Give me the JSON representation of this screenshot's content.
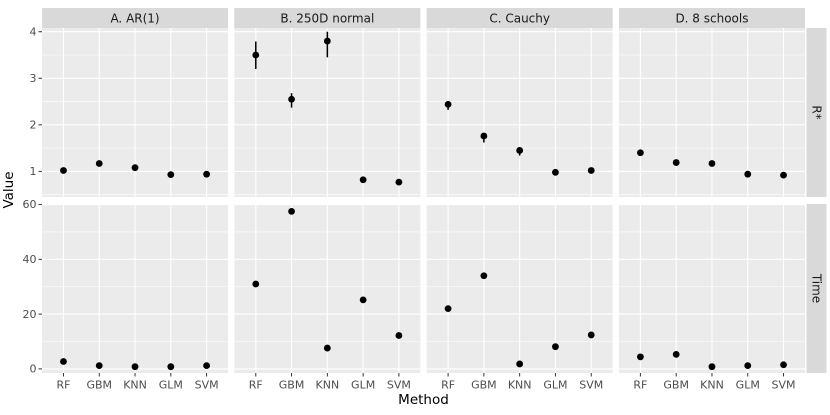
{
  "chart_data": {
    "type": "scatter",
    "title": "",
    "xlabel": "Method",
    "ylabel": "Value",
    "x_categories": [
      "RF",
      "GBM",
      "KNN",
      "GLM",
      "SVM"
    ],
    "col_facets": [
      "A. AR(1)",
      "B. 250D normal",
      "C. Cauchy",
      "D. 8 schools"
    ],
    "row_facets": [
      "R*",
      "Time"
    ],
    "legend": "none",
    "grid": "on",
    "rows": [
      {
        "name": "R*",
        "ylim": [
          0.45,
          4.08
        ],
        "yticks": [
          1,
          2,
          3,
          4
        ],
        "yminor": [
          0.5,
          1.5,
          2.5,
          3.5
        ],
        "panels": [
          {
            "col": "A. AR(1)",
            "values": [
              1.02,
              1.17,
              1.08,
              0.93,
              0.94
            ],
            "lower": [
              null,
              null,
              null,
              null,
              null
            ],
            "upper": [
              null,
              null,
              null,
              null,
              null
            ]
          },
          {
            "col": "B. 250D normal",
            "values": [
              3.5,
              2.55,
              3.8,
              0.82,
              0.77
            ],
            "lower": [
              3.2,
              2.37,
              3.45,
              null,
              null
            ],
            "upper": [
              3.79,
              2.68,
              4.0,
              null,
              null
            ]
          },
          {
            "col": "C. Cauchy",
            "values": [
              2.44,
              1.76,
              1.45,
              0.98,
              1.02
            ],
            "lower": [
              2.32,
              1.62,
              1.34,
              null,
              null
            ],
            "upper": [
              2.5,
              1.82,
              1.5,
              null,
              null
            ]
          },
          {
            "col": "D. 8 schools",
            "values": [
              1.4,
              1.19,
              1.17,
              0.94,
              0.92
            ],
            "lower": [
              null,
              null,
              null,
              null,
              null
            ],
            "upper": [
              null,
              null,
              null,
              null,
              null
            ]
          }
        ]
      },
      {
        "name": "Time",
        "ylim": [
          -1.5,
          60.2
        ],
        "yticks": [
          0,
          20,
          40,
          60
        ],
        "yminor": [
          10,
          30,
          50
        ],
        "panels": [
          {
            "col": "A. AR(1)",
            "values": [
              2.7,
              1.2,
              0.8,
              0.8,
              1.2
            ],
            "lower": [
              null,
              null,
              null,
              null,
              null
            ],
            "upper": [
              null,
              null,
              null,
              null,
              null
            ]
          },
          {
            "col": "B. 250D normal",
            "values": [
              31.0,
              57.5,
              7.6,
              25.2,
              12.2
            ],
            "lower": [
              null,
              null,
              null,
              null,
              null
            ],
            "upper": [
              null,
              null,
              null,
              null,
              null
            ]
          },
          {
            "col": "C. Cauchy",
            "values": [
              22.0,
              34.0,
              1.8,
              8.1,
              12.4
            ],
            "lower": [
              null,
              null,
              null,
              null,
              null
            ],
            "upper": [
              null,
              null,
              null,
              null,
              null
            ]
          },
          {
            "col": "D. 8 schools",
            "values": [
              4.4,
              5.3,
              0.8,
              1.2,
              1.5
            ],
            "lower": [
              null,
              null,
              null,
              null,
              null
            ],
            "upper": [
              null,
              null,
              null,
              null,
              null
            ]
          }
        ]
      }
    ],
    "theme": {
      "panel_bg": "#EBEBEB",
      "strip_bg": "#D9D9D9",
      "grid_color": "#FFFFFF",
      "point_color": "#000000",
      "errorbar_color": "#000000",
      "axis_text_color": "#4D4D4D",
      "strip_text_color": "#1A1A1A",
      "axis_title_color": "#000000",
      "tick_mark_color": "#333333",
      "plot_bg": "#FFFFFF"
    }
  }
}
